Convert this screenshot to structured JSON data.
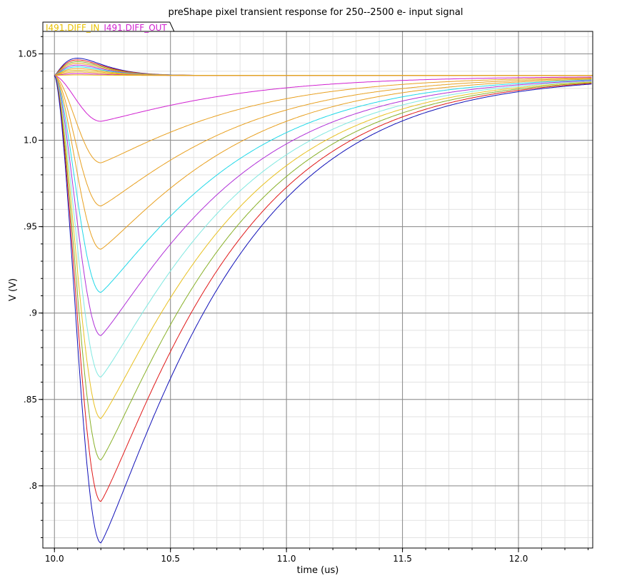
{
  "chart_data": {
    "type": "line",
    "title": "preShape pixel transient response for 250--2500 e- input signal",
    "xlabel": "time (us)",
    "ylabel": "V (V)",
    "xlim": [
      9.95,
      12.32
    ],
    "ylim": [
      0.764,
      1.063
    ],
    "x_ticks": [
      {
        "value": 10.0,
        "label": "10.0"
      },
      {
        "value": 10.5,
        "label": "10.5"
      },
      {
        "value": 11.0,
        "label": "11.0"
      },
      {
        "value": 11.5,
        "label": "11.5"
      },
      {
        "value": 12.0,
        "label": "12.0"
      }
    ],
    "y_ticks": [
      {
        "value": 0.8,
        "label": ".8"
      },
      {
        "value": 0.85,
        "label": ".85"
      },
      {
        "value": 0.9,
        "label": ".9"
      },
      {
        "value": 0.95,
        "label": ".95"
      },
      {
        "value": 1.0,
        "label": "1.0"
      },
      {
        "value": 1.05,
        "label": "1.05"
      }
    ],
    "grid": true,
    "legend_position": "top-left",
    "legend": [
      {
        "label": "I491.DIFF_IN",
        "color": "#E8C000"
      },
      {
        "label": "I491.DIFF_OUT",
        "color": "#D020D0"
      }
    ],
    "baseline_v": 1.0375,
    "final_v": 1.037,
    "t_start": 10.0,
    "t_peak": 10.2,
    "diff_out_series": [
      {
        "color": "#D020D0",
        "min_v": 1.011
      },
      {
        "color": "#E8A020",
        "min_v": 0.987
      },
      {
        "color": "#E8A020",
        "min_v": 0.962
      },
      {
        "color": "#E8A020",
        "min_v": 0.937
      },
      {
        "color": "#20D8E8",
        "min_v": 0.912
      },
      {
        "color": "#B030D8",
        "min_v": 0.887
      },
      {
        "color": "#80E8E0",
        "min_v": 0.863
      },
      {
        "color": "#E8C020",
        "min_v": 0.839
      },
      {
        "color": "#88B028",
        "min_v": 0.815
      },
      {
        "color": "#E01818",
        "min_v": 0.791
      },
      {
        "color": "#1010B8",
        "min_v": 0.767
      }
    ],
    "diff_in_series": [
      {
        "color": "#1010B8",
        "max_v": 1.0475
      },
      {
        "color": "#E01818",
        "max_v": 1.0465
      },
      {
        "color": "#88B028",
        "max_v": 1.0455
      },
      {
        "color": "#E8A020",
        "max_v": 1.0445
      },
      {
        "color": "#B030D8",
        "max_v": 1.0435
      },
      {
        "color": "#20D8E8",
        "max_v": 1.0425
      },
      {
        "color": "#E8A020",
        "max_v": 1.0415
      },
      {
        "color": "#E8C020",
        "max_v": 1.0405
      },
      {
        "color": "#E8A020",
        "max_v": 1.0395
      },
      {
        "color": "#D020D0",
        "max_v": 1.0385
      },
      {
        "color": "#E8C000",
        "max_v": 1.0378
      }
    ]
  }
}
